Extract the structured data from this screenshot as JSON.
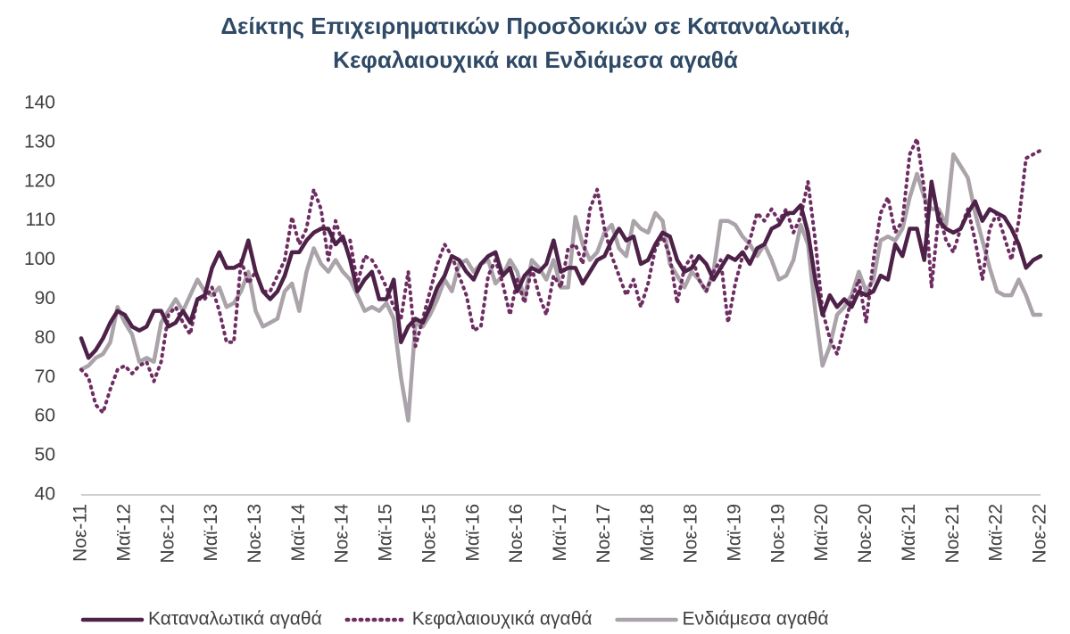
{
  "chart_data": {
    "type": "line",
    "title": [
      "Δείκτης Επιχειρηματικών Προσδοκιών σε Καταναλωτικά,",
      "Κεφαλαιουχικά και Ενδιάμεσα αγαθά"
    ],
    "categories": [
      "Νοε-11",
      null,
      null,
      null,
      null,
      null,
      "Μαϊ-12",
      null,
      null,
      null,
      null,
      null,
      "Νοε-12",
      null,
      null,
      null,
      null,
      null,
      "Μαϊ-13",
      null,
      null,
      null,
      null,
      null,
      "Νοε-13",
      null,
      null,
      null,
      null,
      null,
      "Μαϊ-14",
      null,
      null,
      null,
      null,
      null,
      "Νοε-14",
      null,
      null,
      null,
      null,
      null,
      "Μαϊ-15",
      null,
      null,
      null,
      null,
      null,
      "Νοε-15",
      null,
      null,
      null,
      null,
      null,
      "Μαϊ-16",
      null,
      null,
      null,
      null,
      null,
      "Νοε-16",
      null,
      null,
      null,
      null,
      null,
      "Μαϊ-17",
      null,
      null,
      null,
      null,
      null,
      "Νοε-17",
      null,
      null,
      null,
      null,
      null,
      "Μαϊ-18",
      null,
      null,
      null,
      null,
      null,
      "Νοε-18",
      null,
      null,
      null,
      null,
      null,
      "Μαϊ-19",
      null,
      null,
      null,
      null,
      null,
      "Νοε-19",
      null,
      null,
      null,
      null,
      null,
      "Μαϊ-20",
      null,
      null,
      null,
      null,
      null,
      "Νοε-20",
      null,
      null,
      null,
      null,
      null,
      "Μαϊ-21",
      null,
      null,
      null,
      null,
      null,
      "Νοε-21",
      null,
      null,
      null,
      null,
      null,
      "Μαϊ-22",
      null,
      null,
      null,
      null,
      null,
      "Νοε-22"
    ],
    "series": [
      {
        "name": "Καταναλωτικά αγαθά",
        "color": "#4d2148",
        "style": "solid",
        "values": [
          80,
          75,
          77,
          80,
          84,
          87,
          86,
          83,
          82,
          83,
          87,
          87,
          83,
          84,
          87,
          84,
          90,
          91,
          98,
          102,
          98,
          98,
          99,
          105,
          97,
          92,
          90,
          92,
          96,
          102,
          102,
          105,
          107,
          108,
          108,
          104,
          106,
          100,
          92,
          95,
          97,
          90,
          90,
          95,
          79,
          83,
          85,
          84,
          88,
          93,
          96,
          101,
          100,
          97,
          95,
          99,
          101,
          102,
          96,
          98,
          92,
          96,
          98,
          97,
          99,
          105,
          97,
          98,
          98,
          94,
          97,
          100,
          101,
          105,
          108,
          105,
          106,
          99,
          100,
          104,
          107,
          106,
          100,
          97,
          98,
          101,
          99,
          95,
          98,
          101,
          100,
          102,
          99,
          103,
          104,
          108,
          109,
          112,
          112,
          114,
          107,
          95,
          86,
          91,
          88,
          90,
          88,
          92,
          91,
          92,
          96,
          95,
          104,
          101,
          108,
          108,
          100,
          120,
          110,
          108,
          107,
          108,
          112,
          115,
          110,
          113,
          112,
          111,
          108,
          104,
          98,
          100,
          101
        ]
      },
      {
        "name": "Κεφαλαιουχικά αγαθά",
        "color": "#6e2e62",
        "style": "dotted",
        "values": [
          72,
          70,
          63,
          61,
          67,
          72,
          73,
          71,
          73,
          74,
          69,
          74,
          86,
          88,
          84,
          81,
          90,
          90,
          93,
          87,
          79,
          79,
          100,
          94,
          97,
          92,
          92,
          96,
          100,
          111,
          104,
          108,
          118,
          113,
          100,
          110,
          104,
          105,
          94,
          101,
          100,
          97,
          93,
          88,
          85,
          97,
          78,
          85,
          92,
          99,
          104,
          101,
          96,
          91,
          82,
          83,
          96,
          100,
          94,
          86,
          95,
          89,
          98,
          91,
          86,
          96,
          93,
          103,
          104,
          99,
          113,
          118,
          108,
          101,
          96,
          91,
          95,
          88,
          94,
          103,
          106,
          101,
          89,
          98,
          101,
          95,
          92,
          97,
          100,
          84,
          94,
          101,
          105,
          112,
          110,
          113,
          110,
          113,
          107,
          111,
          120,
          105,
          87,
          80,
          76,
          83,
          90,
          95,
          84,
          100,
          112,
          116,
          107,
          110,
          127,
          131,
          118,
          93,
          112,
          105,
          102,
          108,
          113,
          105,
          95,
          108,
          112,
          106,
          100,
          110,
          126,
          127,
          128
        ]
      },
      {
        "name": "Ενδιάμεσα αγαθά",
        "color": "#aba3aa",
        "style": "solid",
        "values": [
          72,
          73,
          75,
          76,
          79,
          88,
          84,
          81,
          74,
          75,
          74,
          84,
          87,
          90,
          87,
          91,
          95,
          92,
          91,
          93,
          88,
          89,
          92,
          97,
          87,
          83,
          84,
          85,
          92,
          94,
          87,
          97,
          103,
          99,
          97,
          100,
          97,
          95,
          91,
          87,
          88,
          87,
          89,
          85,
          70,
          59,
          84,
          83,
          86,
          90,
          95,
          92,
          99,
          100,
          97,
          99,
          100,
          94,
          96,
          100,
          97,
          90,
          100,
          98,
          95,
          100,
          93,
          93,
          111,
          104,
          100,
          102,
          107,
          109,
          103,
          101,
          110,
          108,
          107,
          112,
          110,
          99,
          96,
          93,
          97,
          95,
          92,
          97,
          110,
          110,
          109,
          106,
          104,
          101,
          104,
          100,
          95,
          96,
          100,
          109,
          104,
          87,
          73,
          78,
          86,
          88,
          91,
          97,
          92,
          95,
          105,
          106,
          105,
          108,
          116,
          122,
          116,
          113,
          113,
          109,
          127,
          124,
          121,
          112,
          105,
          98,
          92,
          91,
          91,
          95,
          91,
          86,
          86
        ]
      }
    ],
    "ylim": [
      40,
      140
    ],
    "yticks": [
      40,
      50,
      60,
      70,
      80,
      90,
      100,
      110,
      120,
      130,
      140
    ],
    "grid": false,
    "legend": "bottom"
  }
}
